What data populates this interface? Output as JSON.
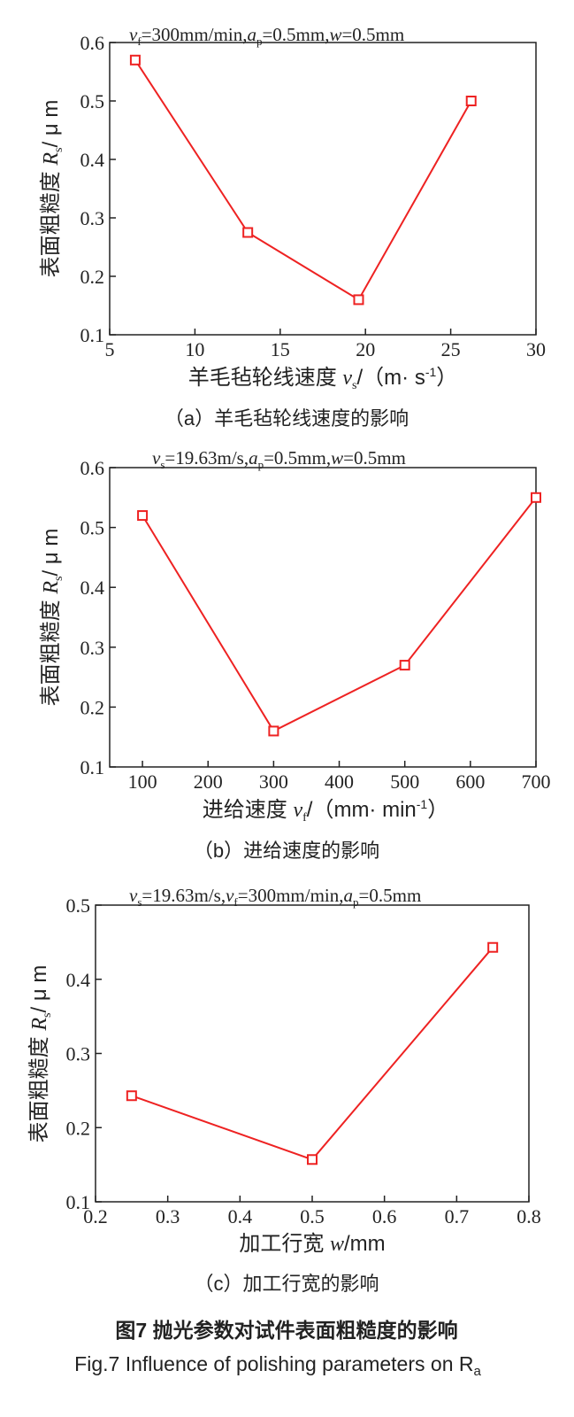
{
  "figure": {
    "title_cn": "图7 抛光参数对试件表面粗糙度的影响",
    "title_en": "Fig.7 Influence of polishing parameters on R",
    "title_en_sub": "a"
  },
  "chart_data": [
    {
      "type": "line",
      "params": "vf=300mm/min,ap=0.5mm,w=0.5mm",
      "xlabel": "羊毛毡轮线速度 vs/（m· s-1）",
      "ylabel": "表面粗糙度 Rs/ μ m",
      "caption": "（a）羊毛毡轮线速度的影响",
      "xlim": [
        5,
        30
      ],
      "ylim": [
        0.1,
        0.6
      ],
      "xticks": [
        5,
        10,
        15,
        20,
        25,
        30
      ],
      "yticks": [
        0.1,
        0.2,
        0.3,
        0.4,
        0.5,
        0.6
      ],
      "x": [
        6.5,
        13.1,
        19.6,
        26.2
      ],
      "y": [
        0.57,
        0.275,
        0.16,
        0.5
      ],
      "color": "#ee2222"
    },
    {
      "type": "line",
      "params": "vs=19.63m/s,ap=0.5mm,w=0.5mm",
      "xlabel": "进给速度 vf/（mm· min-1）",
      "ylabel": "表面粗糙度 Rs/ μ m",
      "caption": "（b）进给速度的影响",
      "xlim": [
        50,
        700
      ],
      "ylim": [
        0.1,
        0.6
      ],
      "xticks": [
        100,
        200,
        300,
        400,
        500,
        600,
        700
      ],
      "yticks": [
        0.1,
        0.2,
        0.3,
        0.4,
        0.5,
        0.6
      ],
      "x": [
        100,
        300,
        500,
        700
      ],
      "y": [
        0.52,
        0.16,
        0.27,
        0.55
      ],
      "color": "#ee2222"
    },
    {
      "type": "line",
      "params": "vs=19.63m/s,vf=300mm/min,ap=0.5mm",
      "xlabel": "加工行宽 w/mm",
      "ylabel": "表面粗糙度 Rs/ μ m",
      "caption": "（c）加工行宽的影响",
      "xlim": [
        0.2,
        0.8
      ],
      "ylim": [
        0.1,
        0.5
      ],
      "xticks": [
        0.2,
        0.3,
        0.4,
        0.5,
        0.6,
        0.7,
        0.8
      ],
      "yticks": [
        0.1,
        0.2,
        0.3,
        0.4,
        0.5
      ],
      "x": [
        0.25,
        0.5,
        0.75
      ],
      "y": [
        0.243,
        0.157,
        0.443
      ],
      "color": "#ee2222"
    }
  ]
}
